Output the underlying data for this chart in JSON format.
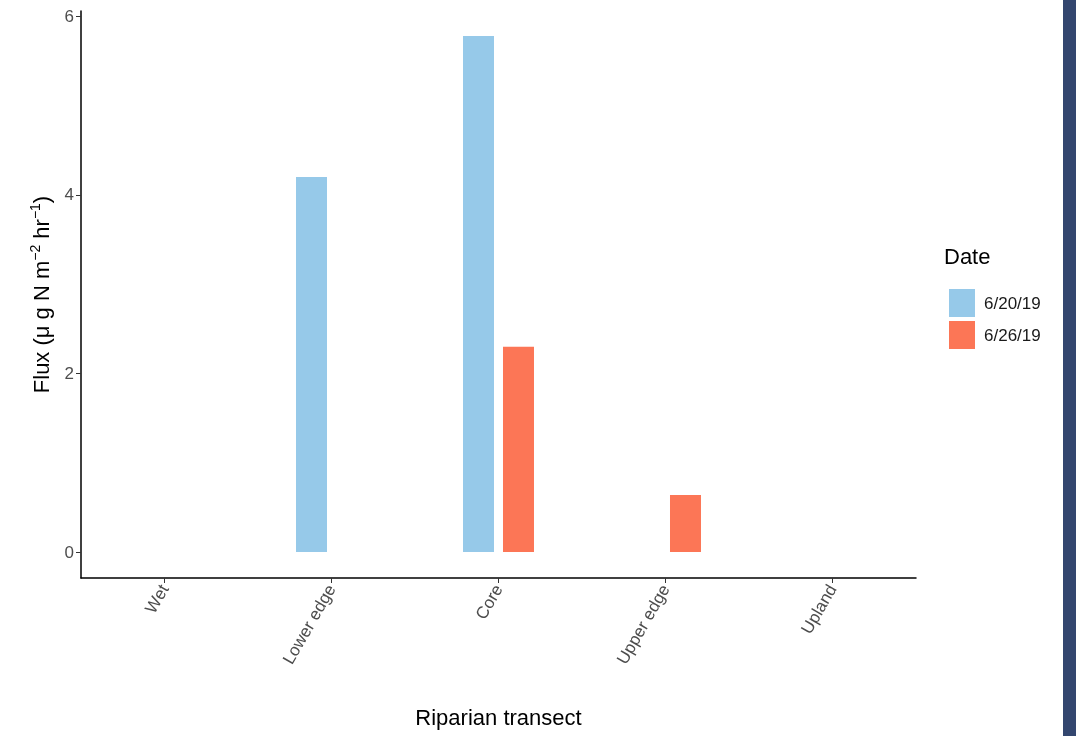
{
  "chart_data": {
    "type": "bar",
    "xlabel": "Riparian transect",
    "ylabel": "Flux (μ g N m$^{−2}$ hr$^{−1}$)",
    "legend_title": "Date",
    "categories": [
      "Wet",
      "Lower edge",
      "Core",
      "Upper edge",
      "Upland"
    ],
    "series": [
      {
        "name": "6/20/19",
        "color": "#96c9e9",
        "values": [
          null,
          4.2,
          5.78,
          null,
          null
        ]
      },
      {
        "name": "6/26/19",
        "color": "#fc7656",
        "values": [
          null,
          null,
          2.3,
          0.64,
          null
        ]
      }
    ],
    "ylim": [
      -0.29,
      6.06
    ],
    "yticks": [
      0,
      2,
      4,
      6
    ],
    "grid": false,
    "legend": "right"
  }
}
